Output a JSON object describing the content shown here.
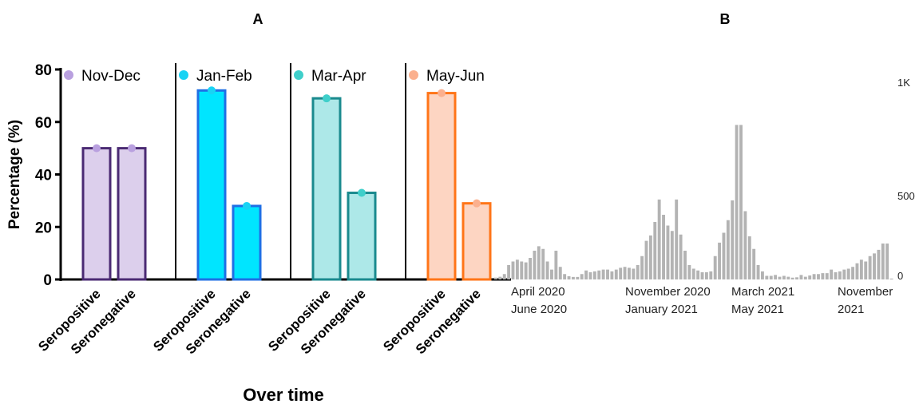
{
  "chart_data": [
    {
      "panel": "A",
      "type": "bar",
      "xlabel": "Over time",
      "ylabel": "Percentage (%)",
      "ylim": [
        0,
        80
      ],
      "yticks": [
        0,
        20,
        40,
        60,
        80
      ],
      "grid": false,
      "categories": [
        "Seropositive",
        "Seronegative"
      ],
      "series": [
        {
          "name": "Nov-Dec",
          "values": [
            50,
            50
          ],
          "fill": "#dccfec",
          "stroke": "#4a2a73",
          "dot": "#b9a0df"
        },
        {
          "name": "Jan-Feb",
          "values": [
            72,
            28
          ],
          "fill": "#00e5ff",
          "stroke": "#1f6fe5",
          "dot": "#19d3f4"
        },
        {
          "name": "Mar-Apr",
          "values": [
            69,
            33
          ],
          "fill": "#ade8e8",
          "stroke": "#1a8a8e",
          "dot": "#3fcfca"
        },
        {
          "name": "May-Jun",
          "values": [
            71,
            29
          ],
          "fill": "#fdd5c2",
          "stroke": "#ff7518",
          "dot": "#fbb08e"
        }
      ]
    },
    {
      "panel": "B",
      "type": "bar",
      "color": "#b3b3b3",
      "ylim": [
        0,
        1000
      ],
      "ytick_labels": [
        "0",
        "500",
        "1K"
      ],
      "grid": false,
      "x_labels": [
        {
          "line1": "April 2020",
          "line2": "June 2020"
        },
        {
          "line1": "November 2020",
          "line2": "January 2021"
        },
        {
          "line1": "March 2021",
          "line2": "May 2021"
        },
        {
          "line1": "November",
          "line2": "2021"
        }
      ],
      "values": [
        10,
        15,
        30,
        80,
        100,
        110,
        100,
        95,
        120,
        160,
        185,
        170,
        100,
        55,
        160,
        70,
        30,
        18,
        14,
        14,
        30,
        50,
        40,
        45,
        50,
        55,
        55,
        45,
        55,
        65,
        70,
        65,
        60,
        80,
        130,
        215,
        245,
        320,
        445,
        360,
        300,
        270,
        445,
        250,
        160,
        80,
        60,
        50,
        40,
        40,
        45,
        130,
        205,
        260,
        330,
        440,
        860,
        860,
        380,
        240,
        170,
        80,
        45,
        20,
        20,
        25,
        15,
        20,
        15,
        10,
        12,
        25,
        15,
        22,
        30,
        30,
        35,
        35,
        55,
        40,
        45,
        55,
        60,
        70,
        90,
        110,
        100,
        130,
        145,
        165,
        200,
        200,
        5
      ]
    }
  ]
}
